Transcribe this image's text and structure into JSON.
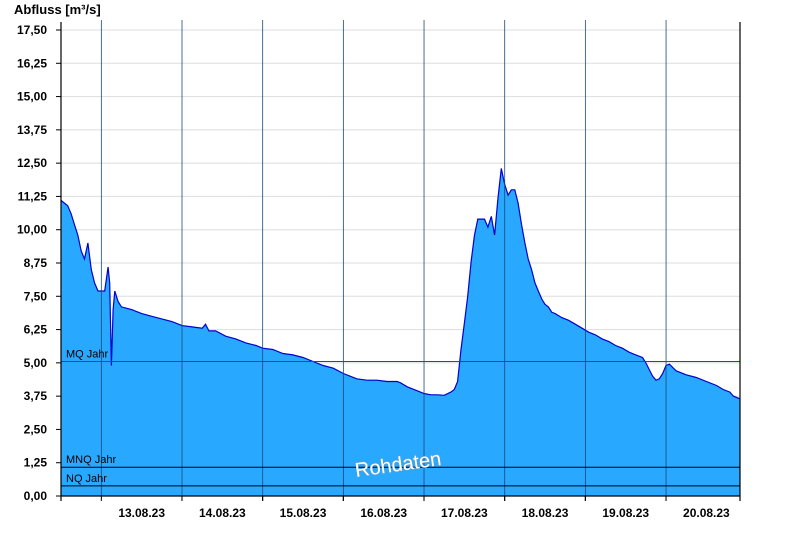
{
  "chart_data": {
    "type": "area",
    "ylabel": "Abfluss [m³/s]",
    "ylim": [
      0,
      17.5
    ],
    "yticks": [
      "0,00",
      "1,25",
      "2,50",
      "3,75",
      "5,00",
      "6,25",
      "7,50",
      "8,75",
      "10,00",
      "11,25",
      "12,50",
      "13,75",
      "15,00",
      "16,25",
      "17,50"
    ],
    "xrange": [
      "2023-08-12T12:00",
      "2023-08-20T22:00"
    ],
    "xticks": [
      {
        "date": "2023-08-13",
        "label": "13.08.23"
      },
      {
        "date": "2023-08-14",
        "label": "14.08.23"
      },
      {
        "date": "2023-08-15",
        "label": "15.08.23"
      },
      {
        "date": "2023-08-16",
        "label": "16.08.23"
      },
      {
        "date": "2023-08-17",
        "label": "17.08.23"
      },
      {
        "date": "2023-08-18",
        "label": "18.08.23"
      },
      {
        "date": "2023-08-19",
        "label": "19.08.23"
      },
      {
        "date": "2023-08-20",
        "label": "20.08.23"
      }
    ],
    "grid": true,
    "colors": {
      "fill": "#29a8ff",
      "line": "#0000cc",
      "mq": "#007700",
      "ref": "#000000",
      "grid": "#dddddd"
    },
    "reference_lines": [
      {
        "label": "MQ Jahr",
        "value": 5.05
      },
      {
        "label": "MNQ Jahr",
        "value": 1.08
      },
      {
        "label": "NQ Jahr",
        "value": 0.38
      }
    ],
    "watermark": "Rohdaten",
    "series": [
      {
        "points": [
          [
            "2023-08-12T12:00",
            11.1
          ],
          [
            "2023-08-12T13:00",
            11.0
          ],
          [
            "2023-08-12T14:00",
            10.9
          ],
          [
            "2023-08-12T15:00",
            10.6
          ],
          [
            "2023-08-12T16:00",
            10.2
          ],
          [
            "2023-08-12T17:00",
            9.8
          ],
          [
            "2023-08-12T18:00",
            9.2
          ],
          [
            "2023-08-12T19:00",
            8.9
          ],
          [
            "2023-08-12T20:00",
            9.5
          ],
          [
            "2023-08-12T21:00",
            8.5
          ],
          [
            "2023-08-12T22:00",
            8.0
          ],
          [
            "2023-08-12T23:00",
            7.7
          ],
          [
            "2023-08-13T00:00",
            7.7
          ],
          [
            "2023-08-13T01:00",
            7.7
          ],
          [
            "2023-08-13T02:00",
            8.6
          ],
          [
            "2023-08-13T02:30",
            8.0
          ],
          [
            "2023-08-13T03:00",
            4.9
          ],
          [
            "2023-08-13T03:30",
            7.0
          ],
          [
            "2023-08-13T04:00",
            7.7
          ],
          [
            "2023-08-13T05:00",
            7.3
          ],
          [
            "2023-08-13T06:00",
            7.1
          ],
          [
            "2023-08-13T09:00",
            7.0
          ],
          [
            "2023-08-13T12:00",
            6.85
          ],
          [
            "2023-08-13T15:00",
            6.75
          ],
          [
            "2023-08-13T18:00",
            6.65
          ],
          [
            "2023-08-13T21:00",
            6.55
          ],
          [
            "2023-08-14T00:00",
            6.4
          ],
          [
            "2023-08-14T03:00",
            6.35
          ],
          [
            "2023-08-14T06:00",
            6.3
          ],
          [
            "2023-08-14T07:00",
            6.45
          ],
          [
            "2023-08-14T08:00",
            6.2
          ],
          [
            "2023-08-14T10:00",
            6.2
          ],
          [
            "2023-08-14T13:00",
            6.0
          ],
          [
            "2023-08-14T16:00",
            5.9
          ],
          [
            "2023-08-14T19:00",
            5.75
          ],
          [
            "2023-08-14T22:00",
            5.65
          ],
          [
            "2023-08-15T00:00",
            5.55
          ],
          [
            "2023-08-15T03:00",
            5.5
          ],
          [
            "2023-08-15T06:00",
            5.35
          ],
          [
            "2023-08-15T09:00",
            5.3
          ],
          [
            "2023-08-15T12:00",
            5.2
          ],
          [
            "2023-08-15T15:00",
            5.05
          ],
          [
            "2023-08-15T18:00",
            4.9
          ],
          [
            "2023-08-15T21:00",
            4.8
          ],
          [
            "2023-08-16T00:00",
            4.6
          ],
          [
            "2023-08-16T02:00",
            4.5
          ],
          [
            "2023-08-16T04:00",
            4.4
          ],
          [
            "2023-08-16T07:00",
            4.35
          ],
          [
            "2023-08-16T10:00",
            4.35
          ],
          [
            "2023-08-16T13:00",
            4.3
          ],
          [
            "2023-08-16T16:00",
            4.3
          ],
          [
            "2023-08-16T17:00",
            4.25
          ],
          [
            "2023-08-16T19:00",
            4.1
          ],
          [
            "2023-08-16T22:00",
            3.95
          ],
          [
            "2023-08-17T00:00",
            3.85
          ],
          [
            "2023-08-17T02:00",
            3.8
          ],
          [
            "2023-08-17T04:00",
            3.8
          ],
          [
            "2023-08-17T06:00",
            3.78
          ],
          [
            "2023-08-17T08:00",
            3.9
          ],
          [
            "2023-08-17T09:00",
            4.0
          ],
          [
            "2023-08-17T10:00",
            4.3
          ],
          [
            "2023-08-17T11:00",
            5.5
          ],
          [
            "2023-08-17T12:00",
            6.5
          ],
          [
            "2023-08-17T13:00",
            7.5
          ],
          [
            "2023-08-17T14:00",
            8.8
          ],
          [
            "2023-08-17T15:00",
            9.8
          ],
          [
            "2023-08-17T16:00",
            10.4
          ],
          [
            "2023-08-17T17:00",
            10.4
          ],
          [
            "2023-08-17T18:00",
            10.4
          ],
          [
            "2023-08-17T19:00",
            10.1
          ],
          [
            "2023-08-17T20:00",
            10.5
          ],
          [
            "2023-08-17T21:00",
            9.8
          ],
          [
            "2023-08-17T22:00",
            11.2
          ],
          [
            "2023-08-17T23:00",
            12.3
          ],
          [
            "2023-08-18T00:00",
            11.7
          ],
          [
            "2023-08-18T01:00",
            11.3
          ],
          [
            "2023-08-18T02:00",
            11.5
          ],
          [
            "2023-08-18T03:00",
            11.5
          ],
          [
            "2023-08-18T04:00",
            11.0
          ],
          [
            "2023-08-18T05:00",
            10.2
          ],
          [
            "2023-08-18T06:00",
            9.5
          ],
          [
            "2023-08-18T07:00",
            8.9
          ],
          [
            "2023-08-18T08:00",
            8.5
          ],
          [
            "2023-08-18T09:00",
            8.0
          ],
          [
            "2023-08-18T10:00",
            7.7
          ],
          [
            "2023-08-18T11:00",
            7.4
          ],
          [
            "2023-08-18T12:00",
            7.2
          ],
          [
            "2023-08-18T13:00",
            7.1
          ],
          [
            "2023-08-18T14:00",
            6.9
          ],
          [
            "2023-08-18T15:00",
            6.85
          ],
          [
            "2023-08-18T17:00",
            6.7
          ],
          [
            "2023-08-18T19:00",
            6.6
          ],
          [
            "2023-08-18T21:00",
            6.45
          ],
          [
            "2023-08-18T23:00",
            6.3
          ],
          [
            "2023-08-19T01:00",
            6.15
          ],
          [
            "2023-08-19T03:00",
            6.05
          ],
          [
            "2023-08-19T05:00",
            5.9
          ],
          [
            "2023-08-19T07:00",
            5.8
          ],
          [
            "2023-08-19T09:00",
            5.65
          ],
          [
            "2023-08-19T11:00",
            5.55
          ],
          [
            "2023-08-19T13:00",
            5.4
          ],
          [
            "2023-08-19T15:00",
            5.3
          ],
          [
            "2023-08-19T17:00",
            5.2
          ],
          [
            "2023-08-19T18:00",
            5.0
          ],
          [
            "2023-08-19T19:00",
            4.75
          ],
          [
            "2023-08-19T20:00",
            4.5
          ],
          [
            "2023-08-19T21:00",
            4.35
          ],
          [
            "2023-08-19T22:00",
            4.4
          ],
          [
            "2023-08-19T23:00",
            4.6
          ],
          [
            "2023-08-20T00:00",
            4.9
          ],
          [
            "2023-08-20T01:00",
            4.95
          ],
          [
            "2023-08-20T03:00",
            4.7
          ],
          [
            "2023-08-20T06:00",
            4.55
          ],
          [
            "2023-08-20T09:00",
            4.45
          ],
          [
            "2023-08-20T12:00",
            4.3
          ],
          [
            "2023-08-20T15:00",
            4.15
          ],
          [
            "2023-08-20T17:00",
            4.0
          ],
          [
            "2023-08-20T19:00",
            3.9
          ],
          [
            "2023-08-20T20:00",
            3.75
          ],
          [
            "2023-08-20T22:00",
            3.65
          ]
        ]
      }
    ]
  }
}
